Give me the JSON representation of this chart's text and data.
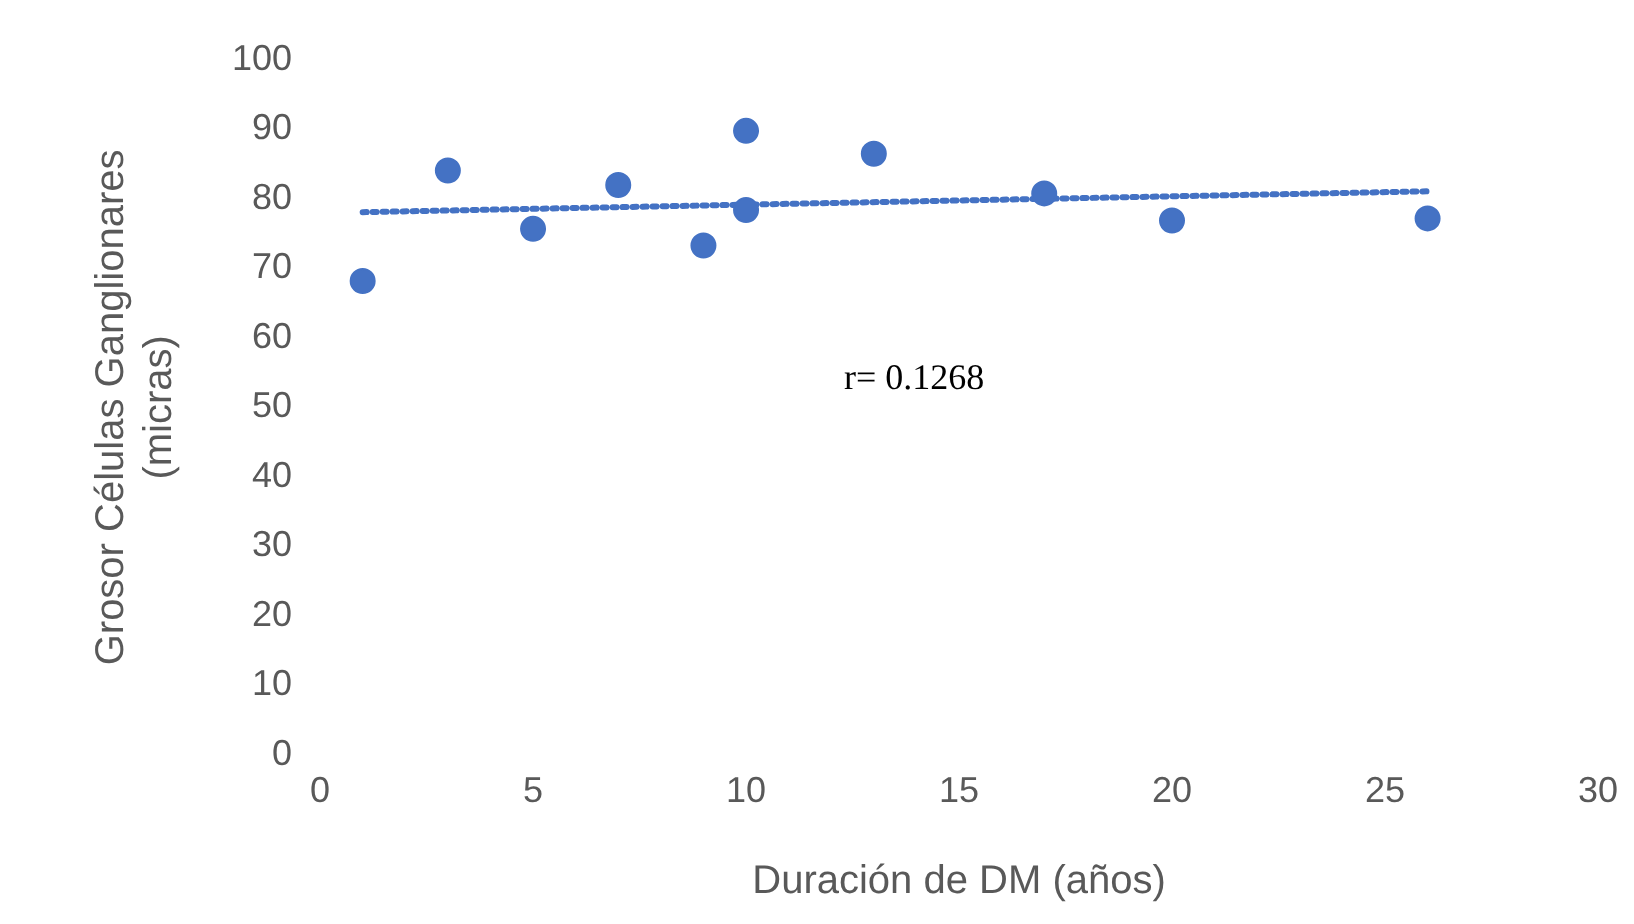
{
  "chart_data": {
    "type": "scatter",
    "xlabel": "Duración de DM (años)",
    "ylabel": "Grosor Células Ganglionares (micras)",
    "annotations": [
      "r= 0.1268"
    ],
    "xlim": [
      0,
      30
    ],
    "xticks": [
      0,
      5,
      10,
      15,
      20,
      25,
      30
    ],
    "ylim": [
      0,
      100
    ],
    "yticks": [
      0,
      10,
      20,
      30,
      40,
      50,
      60,
      70,
      80,
      90,
      100
    ],
    "grid": false,
    "legend": false,
    "marker": "circle",
    "series": [
      {
        "color": "#4472c4",
        "x": [
          1,
          3,
          5,
          7,
          9,
          10,
          10,
          13,
          17,
          20,
          26
        ],
        "values": [
          68.2,
          84.1,
          75.7,
          82,
          73.3,
          89.8,
          78.4,
          86.5,
          80.8,
          76.9,
          77.2
        ]
      },
      {
        "type": "line",
        "color": "#4472c4",
        "line_style": "dotted",
        "marker": "none",
        "x": [
          1,
          26
        ],
        "values": [
          78.1,
          81.1
        ]
      }
    ]
  }
}
